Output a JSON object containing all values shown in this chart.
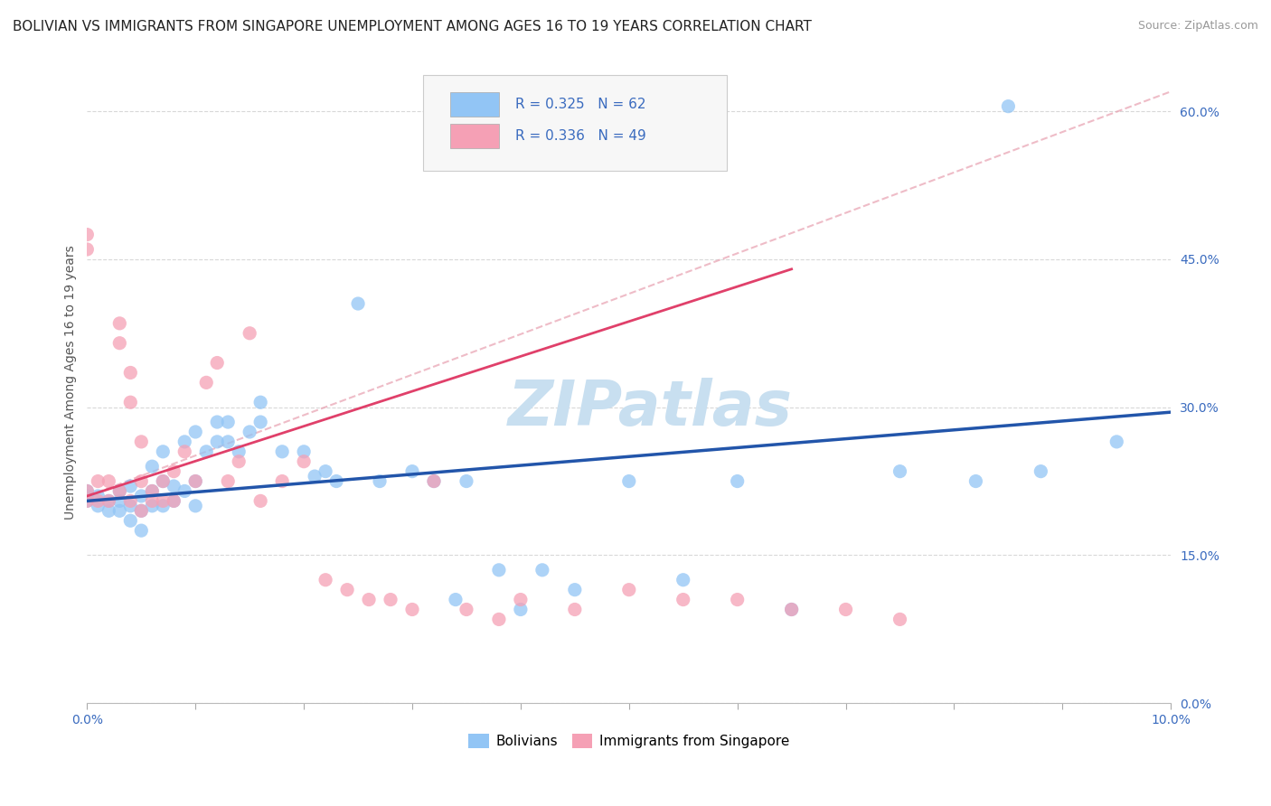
{
  "title": "BOLIVIAN VS IMMIGRANTS FROM SINGAPORE UNEMPLOYMENT AMONG AGES 16 TO 19 YEARS CORRELATION CHART",
  "source": "Source: ZipAtlas.com",
  "ylabel": "Unemployment Among Ages 16 to 19 years",
  "xlim": [
    0.0,
    0.1
  ],
  "ylim": [
    0.0,
    0.65
  ],
  "yticks": [
    0.0,
    0.15,
    0.3,
    0.45,
    0.6
  ],
  "ytick_labels": [
    "0.0%",
    "15.0%",
    "30.0%",
    "45.0%",
    "60.0%"
  ],
  "xticks": [
    0.0,
    0.01,
    0.02,
    0.03,
    0.04,
    0.05,
    0.06,
    0.07,
    0.08,
    0.09,
    0.1
  ],
  "xtick_labels": [
    "0.0%",
    "",
    "",
    "",
    "",
    "",
    "",
    "",
    "",
    "",
    "10.0%"
  ],
  "blue_color": "#92c5f5",
  "pink_color": "#f5a0b5",
  "blue_line_color": "#2255aa",
  "pink_line_color": "#e0406a",
  "dashed_line_color": "#e8a0b0",
  "R_blue": 0.325,
  "N_blue": 62,
  "R_pink": 0.336,
  "N_pink": 49,
  "legend_label_blue": "Bolivians",
  "legend_label_pink": "Immigrants from Singapore",
  "watermark": "ZIPatlas",
  "blue_scatter_x": [
    0.0,
    0.0,
    0.0,
    0.001,
    0.001,
    0.002,
    0.002,
    0.003,
    0.003,
    0.003,
    0.004,
    0.004,
    0.004,
    0.005,
    0.005,
    0.005,
    0.006,
    0.006,
    0.006,
    0.007,
    0.007,
    0.007,
    0.008,
    0.008,
    0.009,
    0.009,
    0.01,
    0.01,
    0.01,
    0.011,
    0.012,
    0.012,
    0.013,
    0.013,
    0.014,
    0.015,
    0.016,
    0.016,
    0.018,
    0.02,
    0.021,
    0.022,
    0.023,
    0.025,
    0.027,
    0.03,
    0.032,
    0.034,
    0.035,
    0.038,
    0.04,
    0.042,
    0.045,
    0.05,
    0.055,
    0.06,
    0.065,
    0.075,
    0.082,
    0.085,
    0.088,
    0.095
  ],
  "blue_scatter_y": [
    0.205,
    0.21,
    0.215,
    0.2,
    0.21,
    0.195,
    0.205,
    0.195,
    0.205,
    0.215,
    0.185,
    0.2,
    0.22,
    0.175,
    0.195,
    0.21,
    0.2,
    0.215,
    0.24,
    0.2,
    0.225,
    0.255,
    0.205,
    0.22,
    0.215,
    0.265,
    0.2,
    0.225,
    0.275,
    0.255,
    0.265,
    0.285,
    0.265,
    0.285,
    0.255,
    0.275,
    0.285,
    0.305,
    0.255,
    0.255,
    0.23,
    0.235,
    0.225,
    0.405,
    0.225,
    0.235,
    0.225,
    0.105,
    0.225,
    0.135,
    0.095,
    0.135,
    0.115,
    0.225,
    0.125,
    0.225,
    0.095,
    0.235,
    0.225,
    0.605,
    0.235,
    0.265
  ],
  "pink_scatter_x": [
    0.0,
    0.0,
    0.0,
    0.0,
    0.001,
    0.001,
    0.002,
    0.002,
    0.003,
    0.003,
    0.003,
    0.004,
    0.004,
    0.004,
    0.005,
    0.005,
    0.005,
    0.006,
    0.006,
    0.007,
    0.007,
    0.008,
    0.008,
    0.009,
    0.01,
    0.011,
    0.012,
    0.013,
    0.014,
    0.015,
    0.016,
    0.018,
    0.02,
    0.022,
    0.024,
    0.026,
    0.028,
    0.03,
    0.032,
    0.035,
    0.038,
    0.04,
    0.045,
    0.05,
    0.055,
    0.06,
    0.065,
    0.07,
    0.075
  ],
  "pink_scatter_y": [
    0.205,
    0.215,
    0.46,
    0.475,
    0.205,
    0.225,
    0.205,
    0.225,
    0.215,
    0.365,
    0.385,
    0.205,
    0.305,
    0.335,
    0.195,
    0.225,
    0.265,
    0.205,
    0.215,
    0.205,
    0.225,
    0.205,
    0.235,
    0.255,
    0.225,
    0.325,
    0.345,
    0.225,
    0.245,
    0.375,
    0.205,
    0.225,
    0.245,
    0.125,
    0.115,
    0.105,
    0.105,
    0.095,
    0.225,
    0.095,
    0.085,
    0.105,
    0.095,
    0.115,
    0.105,
    0.105,
    0.095,
    0.095,
    0.085
  ],
  "blue_trend_x": [
    0.0,
    0.1
  ],
  "blue_trend_y": [
    0.205,
    0.295
  ],
  "pink_trend_x": [
    0.0,
    0.065
  ],
  "pink_trend_y": [
    0.21,
    0.44
  ],
  "dashed_trend_x": [
    0.0,
    0.1
  ],
  "dashed_trend_y": [
    0.21,
    0.62
  ],
  "title_fontsize": 11,
  "label_fontsize": 10,
  "tick_fontsize": 10,
  "legend_fontsize": 11,
  "source_fontsize": 9,
  "watermark_fontsize": 50,
  "watermark_color": "#c8dff0",
  "background_color": "#ffffff",
  "grid_color": "#d8d8d8",
  "tick_color": "#3a6bbf"
}
